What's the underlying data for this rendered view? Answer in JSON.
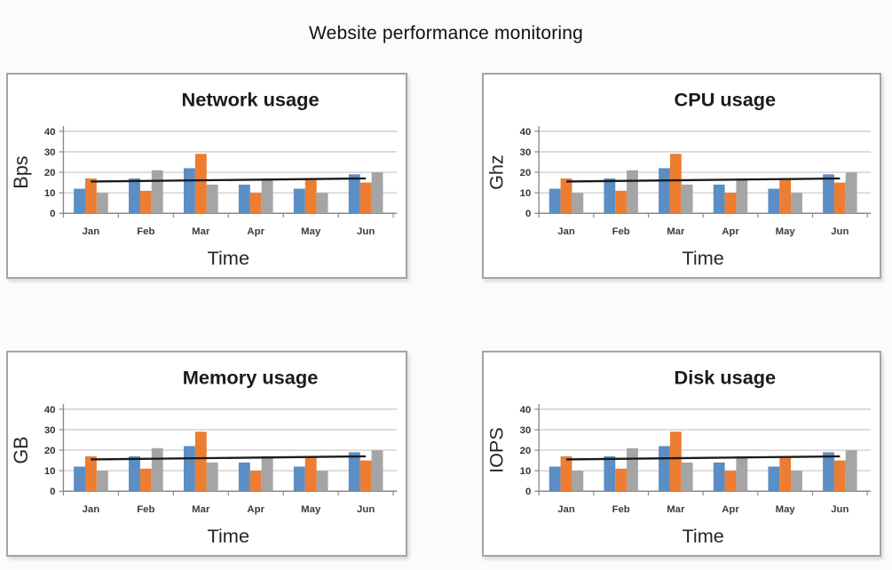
{
  "page": {
    "title": "Website performance monitoring"
  },
  "style": {
    "grid_color": "#c6c6c6",
    "axis_color": "#8a8a8a",
    "panel_border_color": "#a3a3aa",
    "background_color": "#fbfbfb"
  },
  "chart_data": [
    {
      "type": "bar",
      "title": "Network usage",
      "xlabel": "Time",
      "ylabel": "Bps",
      "categories": [
        "Jan",
        "Feb",
        "Mar",
        "Apr",
        "May",
        "Jun"
      ],
      "series": [
        {
          "name": "series-blue",
          "color": "#5b8ec4",
          "values": [
            12,
            17,
            22,
            14,
            12,
            19
          ]
        },
        {
          "name": "series-orange",
          "color": "#ed7d31",
          "values": [
            17,
            11,
            29,
            10,
            17,
            15
          ]
        },
        {
          "name": "series-gray",
          "color": "#a5a5a5",
          "values": [
            10,
            21,
            14,
            17,
            10,
            20
          ]
        }
      ],
      "trendline": {
        "color": "#1a1a1a",
        "start": 15.5,
        "end": 17
      },
      "ylim": [
        0,
        40
      ],
      "yticks": [
        0,
        10,
        20,
        30,
        40
      ],
      "grid": true,
      "legend": "none"
    },
    {
      "type": "bar",
      "title": "CPU usage",
      "xlabel": "Time",
      "ylabel": "Ghz",
      "categories": [
        "Jan",
        "Feb",
        "Mar",
        "Apr",
        "May",
        "Jun"
      ],
      "series": [
        {
          "name": "series-blue",
          "color": "#5b8ec4",
          "values": [
            12,
            17,
            22,
            14,
            12,
            19
          ]
        },
        {
          "name": "series-orange",
          "color": "#ed7d31",
          "values": [
            17,
            11,
            29,
            10,
            17,
            15
          ]
        },
        {
          "name": "series-gray",
          "color": "#a5a5a5",
          "values": [
            10,
            21,
            14,
            17,
            10,
            20
          ]
        }
      ],
      "trendline": {
        "color": "#1a1a1a",
        "start": 15.5,
        "end": 17
      },
      "ylim": [
        0,
        40
      ],
      "yticks": [
        0,
        10,
        20,
        30,
        40
      ],
      "grid": true,
      "legend": "none"
    },
    {
      "type": "bar",
      "title": "Memory usage",
      "xlabel": "Time",
      "ylabel": "GB",
      "categories": [
        "Jan",
        "Feb",
        "Mar",
        "Apr",
        "May",
        "Jun"
      ],
      "series": [
        {
          "name": "series-blue",
          "color": "#5b8ec4",
          "values": [
            12,
            17,
            22,
            14,
            12,
            19
          ]
        },
        {
          "name": "series-orange",
          "color": "#ed7d31",
          "values": [
            17,
            11,
            29,
            10,
            17,
            15
          ]
        },
        {
          "name": "series-gray",
          "color": "#a5a5a5",
          "values": [
            10,
            21,
            14,
            17,
            10,
            20
          ]
        }
      ],
      "trendline": {
        "color": "#1a1a1a",
        "start": 15.5,
        "end": 17
      },
      "ylim": [
        0,
        40
      ],
      "yticks": [
        0,
        10,
        20,
        30,
        40
      ],
      "grid": true,
      "legend": "none"
    },
    {
      "type": "bar",
      "title": "Disk usage",
      "xlabel": "Time",
      "ylabel": "IOPS",
      "categories": [
        "Jan",
        "Feb",
        "Mar",
        "Apr",
        "May",
        "Jun"
      ],
      "series": [
        {
          "name": "series-blue",
          "color": "#5b8ec4",
          "values": [
            12,
            17,
            22,
            14,
            12,
            19
          ]
        },
        {
          "name": "series-orange",
          "color": "#ed7d31",
          "values": [
            17,
            11,
            29,
            10,
            17,
            15
          ]
        },
        {
          "name": "series-gray",
          "color": "#a5a5a5",
          "values": [
            10,
            21,
            14,
            17,
            10,
            20
          ]
        }
      ],
      "trendline": {
        "color": "#1a1a1a",
        "start": 15.5,
        "end": 17
      },
      "ylim": [
        0,
        40
      ],
      "yticks": [
        0,
        10,
        20,
        30,
        40
      ],
      "grid": true,
      "legend": "none"
    }
  ]
}
